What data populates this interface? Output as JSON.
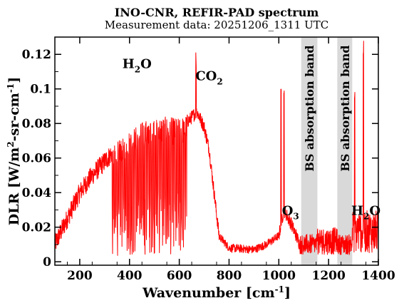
{
  "chart_data": {
    "type": "line",
    "title": "INO-CNR, REFIR-PAD spectrum",
    "subtitle": "Measurement data: 20251206_1311 UTC",
    "xlabel": {
      "main": "Wavenumber [cm",
      "sup": "-1",
      "tail": "]"
    },
    "ylabel": {
      "a": "DLR [W/m",
      "sup1": "2",
      "b": "-sr-cm",
      "sup2": "-1",
      "c": "]"
    },
    "xlim": [
      100,
      1400
    ],
    "ylim": [
      -0.002,
      0.13
    ],
    "x_ticks": [
      200,
      400,
      600,
      800,
      1000,
      1200,
      1400
    ],
    "y_ticks": [
      0,
      0.02,
      0.04,
      0.06,
      0.08,
      0.1,
      0.12
    ],
    "y_tick_labels": [
      "0",
      "0.02",
      "0.04",
      "0.06",
      "0.08",
      "0.1",
      "0.12"
    ],
    "grid": false,
    "series_color": "#ff0000",
    "shaded_bands": [
      {
        "x": [
          1090,
          1155
        ],
        "label": "BS absorption band",
        "color": "#d9d9d9"
      },
      {
        "x": [
          1235,
          1295
        ],
        "label": "BS absorption band",
        "color": "#d9d9d9"
      }
    ],
    "annotations": [
      {
        "text": "H",
        "sub": "2",
        "tail": "O",
        "x": 430,
        "y": 0.112
      },
      {
        "text": "CO",
        "sub": "2",
        "tail": "",
        "x": 720,
        "y": 0.105
      },
      {
        "text": "O",
        "sub": "3",
        "tail": "",
        "x": 1047,
        "y": 0.027
      },
      {
        "text": "H",
        "sub": "2",
        "tail": "O",
        "x": 1350,
        "y": 0.027
      }
    ],
    "envelope": [
      {
        "x": 100,
        "y": 0.01
      },
      {
        "x": 150,
        "y": 0.025
      },
      {
        "x": 200,
        "y": 0.04
      },
      {
        "x": 250,
        "y": 0.05
      },
      {
        "x": 300,
        "y": 0.058
      },
      {
        "x": 350,
        "y": 0.066
      },
      {
        "x": 400,
        "y": 0.072
      },
      {
        "x": 450,
        "y": 0.077
      },
      {
        "x": 500,
        "y": 0.08
      },
      {
        "x": 550,
        "y": 0.08
      },
      {
        "x": 600,
        "y": 0.079
      },
      {
        "x": 640,
        "y": 0.082
      },
      {
        "x": 670,
        "y": 0.087
      },
      {
        "x": 700,
        "y": 0.078
      },
      {
        "x": 720,
        "y": 0.065
      },
      {
        "x": 740,
        "y": 0.04
      },
      {
        "x": 760,
        "y": 0.015
      },
      {
        "x": 800,
        "y": 0.008
      },
      {
        "x": 900,
        "y": 0.007
      },
      {
        "x": 950,
        "y": 0.01
      },
      {
        "x": 1000,
        "y": 0.015
      },
      {
        "x": 1020,
        "y": 0.03
      },
      {
        "x": 1050,
        "y": 0.022
      },
      {
        "x": 1090,
        "y": 0.008
      },
      {
        "x": 1160,
        "y": 0.005
      },
      {
        "x": 1230,
        "y": 0.008
      },
      {
        "x": 1300,
        "y": 0.012
      },
      {
        "x": 1340,
        "y": 0.02
      },
      {
        "x": 1400,
        "y": 0.015
      }
    ],
    "peaks": [
      {
        "x": 667,
        "y": 0.123
      },
      {
        "x": 1009,
        "y": 0.105
      },
      {
        "x": 1021,
        "y": 0.101
      },
      {
        "x": 1305,
        "y": 0.1
      },
      {
        "x": 1340,
        "y": 0.128
      }
    ]
  }
}
